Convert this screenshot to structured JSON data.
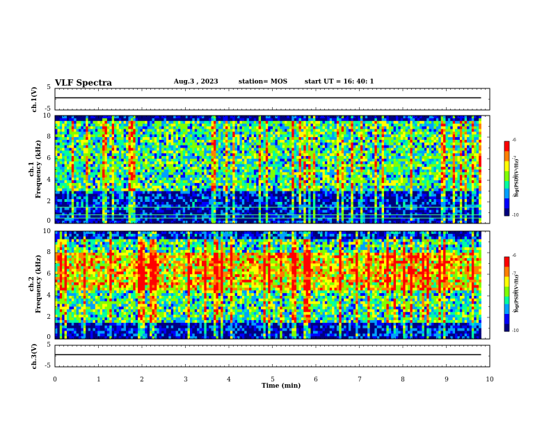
{
  "header": {
    "title": "VLF Spectra",
    "date": "Aug.3  , 2023",
    "station": "station= MOS",
    "start_ut": "start  UT  =   16: 40: 1"
  },
  "chart_data": [
    {
      "type": "line",
      "name": "ch1-voltage",
      "ylabel": "ch.1(V)",
      "ylim": [
        -5,
        5
      ],
      "yticks": [
        "5",
        "-5"
      ],
      "x": [
        0,
        9.8
      ],
      "values": [
        0,
        0
      ]
    },
    {
      "type": "heatmap",
      "name": "ch1-spectrogram",
      "ylabel": "ch.1\nFrequency (kHz)",
      "ylim": [
        0,
        10
      ],
      "yticks": [
        "10",
        "8",
        "6",
        "4",
        "2",
        "0"
      ],
      "xlim": [
        0,
        9.8
      ],
      "colorbar": {
        "label": "log(PSD)(V²/Hz)",
        "ticks": [
          "-6",
          "-7",
          "-8",
          "-9",
          "-10"
        ],
        "range": [
          -10,
          -6
        ]
      },
      "notes_bands_khz": [
        0.5,
        0.8,
        1.5
      ]
    },
    {
      "type": "heatmap",
      "name": "ch2-spectrogram",
      "ylabel": "ch.2\nFrequency (kHz)",
      "ylim": [
        0,
        10
      ],
      "yticks": [
        "10",
        "8",
        "6",
        "4",
        "2",
        "0"
      ],
      "xlim": [
        0,
        9.8
      ],
      "colorbar": {
        "label": "log(PSD)(V²/Hz)",
        "ticks": [
          "-6",
          "-7",
          "-8",
          "-9",
          "-10"
        ],
        "range": [
          -10,
          -6
        ]
      }
    },
    {
      "type": "line",
      "name": "ch3-voltage",
      "ylabel": "ch.3(V)",
      "ylim": [
        -5,
        5
      ],
      "yticks": [
        "5",
        "-5"
      ],
      "x": [
        0,
        9.8
      ],
      "values": [
        0,
        0
      ]
    }
  ],
  "xaxis": {
    "label": "Time  (min)",
    "ticks": [
      "0",
      "1",
      "2",
      "3",
      "4",
      "5",
      "6",
      "7",
      "8",
      "9",
      "10"
    ],
    "range": [
      0,
      10
    ]
  },
  "colors": {
    "colormap": [
      "#000080",
      "#0000ff",
      "#00a0ff",
      "#00ffa0",
      "#80ff00",
      "#ffff00",
      "#ff8000",
      "#ff0000",
      "#ffffff"
    ]
  }
}
